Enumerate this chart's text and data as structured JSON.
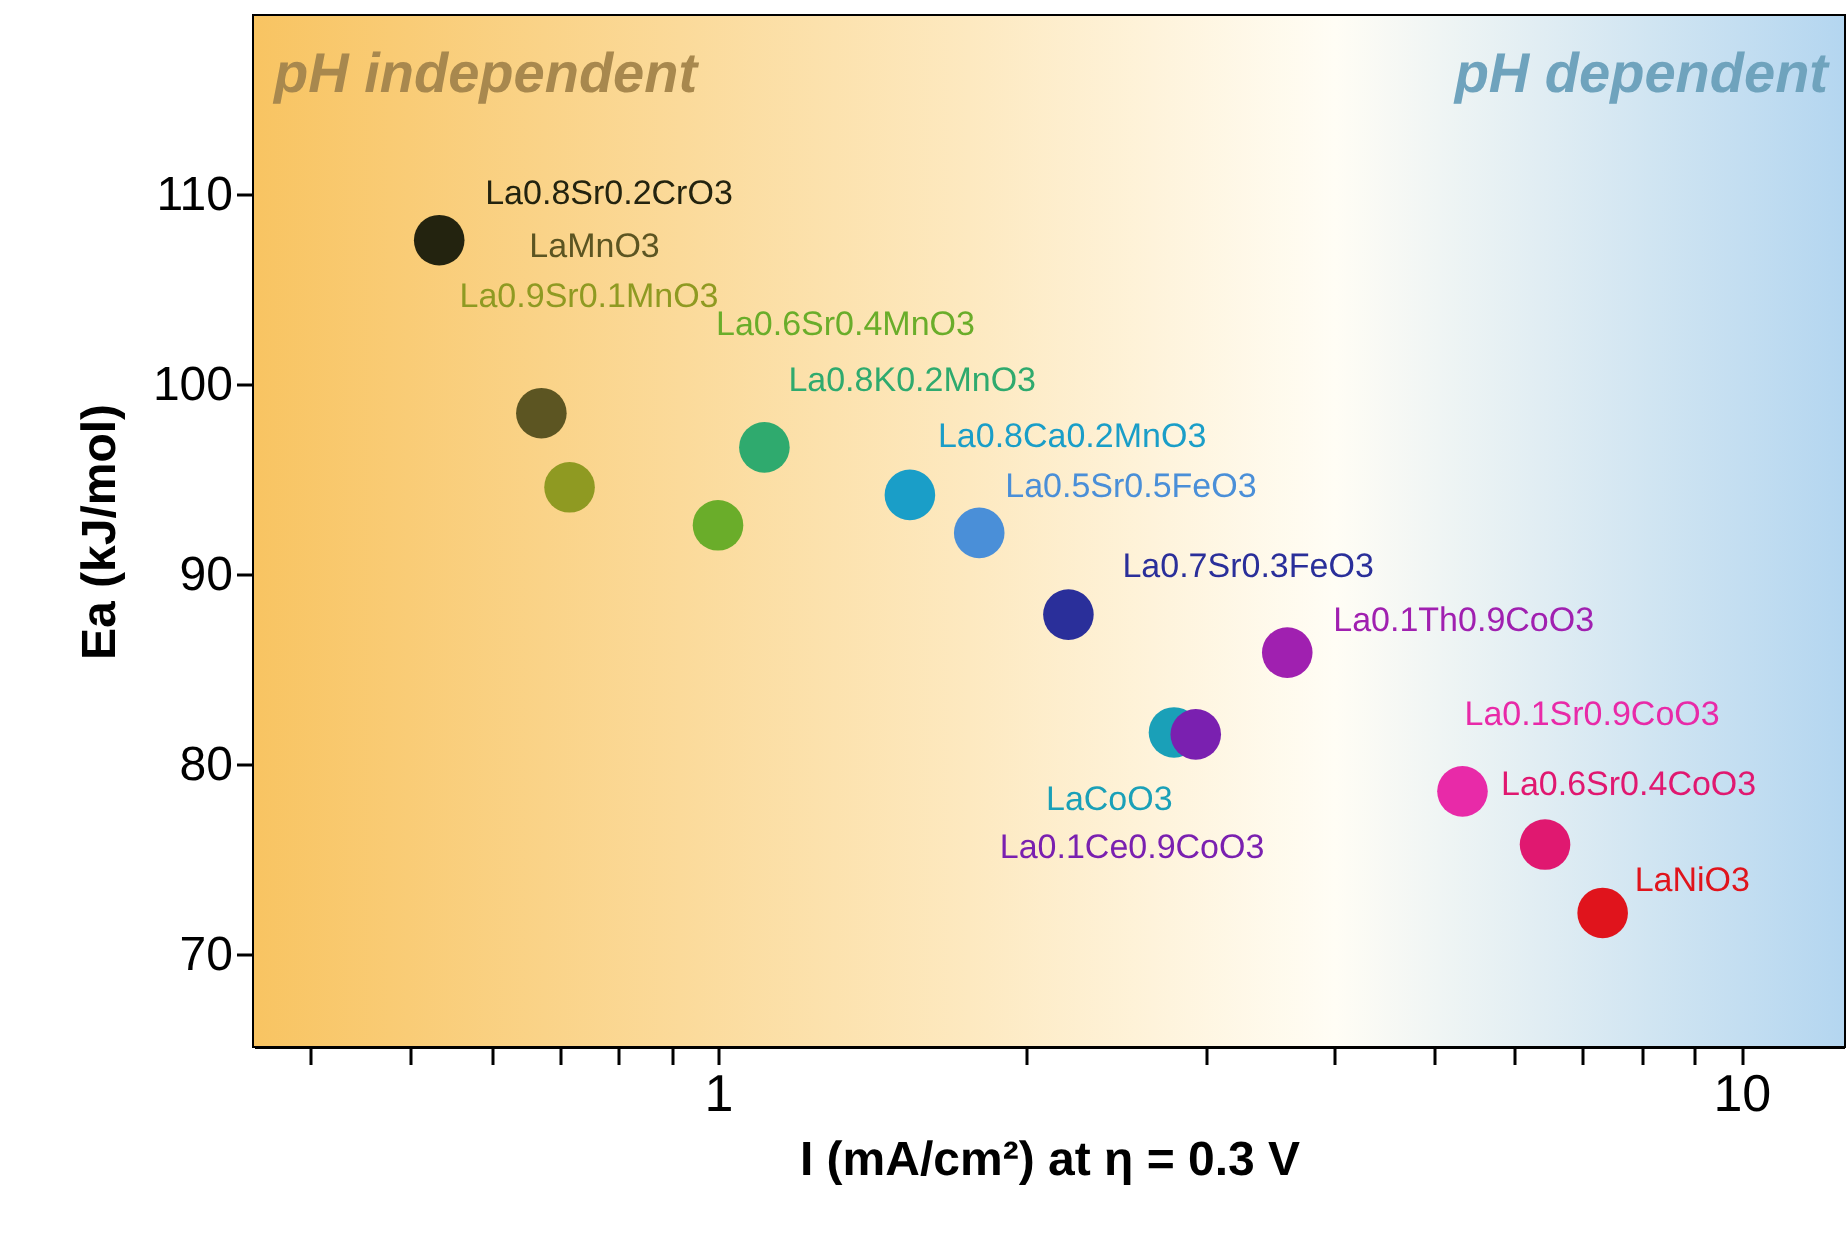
{
  "chart_data": {
    "type": "scatter",
    "xlabel": "I (mA/cm²) at η = 0.3 V",
    "ylabel": "Ea (kJ/mol)",
    "annotations": [
      "pH independent",
      "pH dependent"
    ],
    "log": "x",
    "xlim": [
      0.352,
      12.6
    ],
    "ylim": [
      65.2,
      119.4
    ],
    "xticks": [
      {
        "value": 0.4,
        "label": null
      },
      {
        "value": 0.5,
        "label": null
      },
      {
        "value": 0.6,
        "label": null
      },
      {
        "value": 0.7,
        "label": null
      },
      {
        "value": 0.8,
        "label": null
      },
      {
        "value": 0.9,
        "label": null
      },
      1,
      {
        "value": 2,
        "label": null
      },
      {
        "value": 3,
        "label": null
      },
      {
        "value": 4,
        "label": null
      },
      {
        "value": 5,
        "label": null
      },
      {
        "value": 6,
        "label": null
      },
      {
        "value": 7,
        "label": null
      },
      {
        "value": 8,
        "label": null
      },
      {
        "value": 9,
        "label": null
      },
      10
    ],
    "yticks": [
      70,
      80,
      90,
      100,
      110
    ],
    "grid": false,
    "series": [
      {
        "name": "La0.8Sr0.2CrO3",
        "color": "#23230f",
        "x": [
          0.534
        ],
        "values": [
          107.6
        ]
      },
      {
        "name": "LaMnO3",
        "color": "#5c5522",
        "x": [
          0.672
        ],
        "values": [
          98.5
        ]
      },
      {
        "name": "La0.9Sr0.1MnO3",
        "color": "#8f9a22",
        "x": [
          0.716
        ],
        "values": [
          94.6
        ]
      },
      {
        "name": "La0.6Sr0.4MnO3",
        "color": "#6aad2a",
        "x": [
          1.0
        ],
        "values": [
          92.6
        ]
      },
      {
        "name": "La0.8K0.2MnO3",
        "color": "#2faa6e",
        "x": [
          1.11
        ],
        "values": [
          96.7
        ]
      },
      {
        "name": "La0.8Ca0.2MnO3",
        "color": "#1a9ec8",
        "x": [
          1.54
        ],
        "values": [
          94.2
        ]
      },
      {
        "name": "La0.5Sr0.5FeO3",
        "color": "#4a8fd8",
        "x": [
          1.8
        ],
        "values": [
          92.2
        ]
      },
      {
        "name": "La0.7Sr0.3FeO3",
        "color": "#2a2f9a",
        "x": [
          2.2
        ],
        "values": [
          87.9
        ]
      },
      {
        "name": "La0.1Th0.9CoO3",
        "color": "#a020b0",
        "x": [
          3.6
        ],
        "values": [
          85.9
        ]
      },
      {
        "name": "LaCoO3",
        "color": "#1aa0b8",
        "x": [
          2.79
        ],
        "values": [
          81.7
        ]
      },
      {
        "name": "La0.1Ce0.9CoO3",
        "color": "#7a20b0",
        "x": [
          2.93
        ],
        "values": [
          81.6
        ]
      },
      {
        "name": "La0.1Sr0.9CoO3",
        "color": "#e82aa8",
        "x": [
          5.34
        ],
        "values": [
          78.6
        ]
      },
      {
        "name": "La0.6Sr0.4CoO3",
        "color": "#e01870",
        "x": [
          6.43
        ],
        "values": [
          75.8
        ]
      },
      {
        "name": "LaNiO3",
        "color": "#e0141c",
        "x": [
          7.32
        ],
        "values": [
          72.2
        ]
      }
    ]
  }
}
